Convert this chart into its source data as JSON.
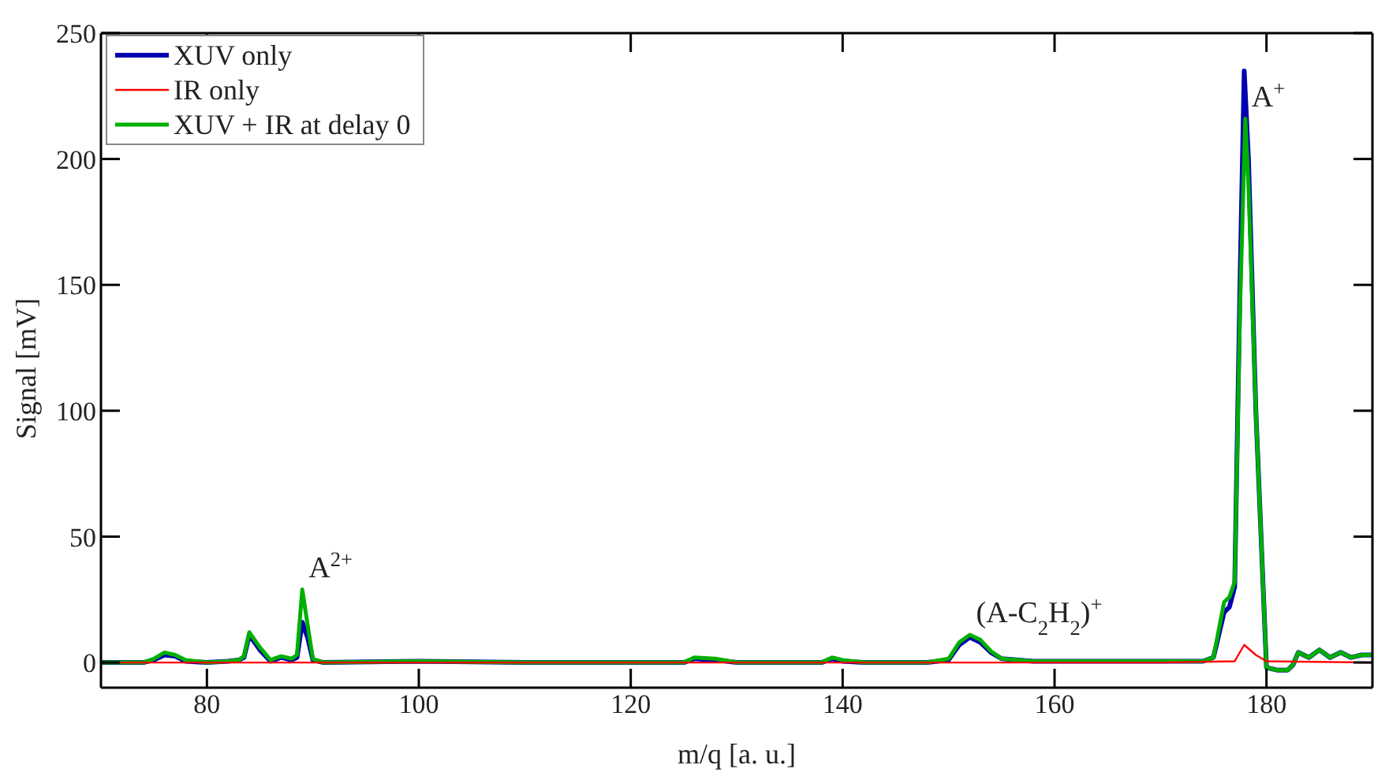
{
  "chart_data": {
    "type": "line",
    "xlabel": "m/q [a. u.]",
    "ylabel": "Signal [mV]",
    "xlim": [
      70,
      190
    ],
    "ylim": [
      -10,
      250
    ],
    "xticks": [
      80,
      100,
      120,
      140,
      160,
      180
    ],
    "yticks": [
      0,
      50,
      100,
      150,
      200,
      250
    ],
    "grid": false,
    "legend": "top left",
    "marker": "none",
    "line_style": "solid",
    "annotations": [
      {
        "text": "A$^{2+}$",
        "x": 89,
        "y": 29
      },
      {
        "text": "(A-C$_{2}$H$_{2}$)$^{+}$",
        "x": 152,
        "y": 11
      },
      {
        "text": "A$^{+}$",
        "x": 178,
        "y": 216
      }
    ],
    "series": [
      {
        "name": "XUV only",
        "color": "#0000b0",
        "x": [
          70,
          74,
          75,
          76,
          77,
          78,
          80,
          82,
          83,
          83.5,
          84,
          85,
          86,
          87,
          88,
          88.5,
          89,
          89.5,
          90,
          91,
          100,
          110,
          120,
          125,
          126,
          128,
          130,
          138,
          139,
          140,
          142,
          148,
          150,
          151,
          152,
          153,
          154,
          155,
          158,
          165,
          170,
          174,
          175,
          176,
          176.5,
          177,
          177.5,
          177.9,
          178.3,
          179,
          180,
          181,
          182,
          182.5,
          183,
          184,
          185,
          186,
          187,
          188,
          189,
          190
        ],
        "values": [
          0,
          0,
          1,
          3,
          2.5,
          0.5,
          0,
          0.5,
          1,
          2,
          11,
          5,
          0.5,
          2,
          1,
          2,
          16,
          10,
          1,
          0,
          0.5,
          0,
          0,
          0,
          1.5,
          1,
          0,
          0,
          1.5,
          0.5,
          0,
          0,
          1,
          7,
          10,
          8,
          4,
          1.5,
          0.5,
          0.5,
          0.5,
          0.5,
          2,
          20,
          22,
          30,
          150,
          235,
          200,
          100,
          -2,
          -3,
          -3,
          -1,
          4,
          2,
          5,
          2,
          4,
          2,
          3,
          3
        ]
      },
      {
        "name": "IR only",
        "color": "#ff0000",
        "x": [
          70,
          100,
          140,
          170,
          177,
          177.9,
          179,
          180,
          190
        ],
        "values": [
          0,
          0,
          0,
          0,
          0.5,
          7,
          3,
          0.5,
          0
        ]
      },
      {
        "name": "XUV + IR at delay 0",
        "color": "#00b000",
        "x": [
          70,
          74,
          75,
          76,
          77,
          78,
          80,
          82,
          83,
          83.5,
          84,
          85,
          86,
          87,
          88,
          88.5,
          89,
          89.5,
          90,
          91,
          100,
          110,
          120,
          125,
          126,
          128,
          130,
          138,
          139,
          140,
          142,
          148,
          150,
          151,
          152,
          153,
          154,
          155,
          158,
          165,
          170,
          174,
          175,
          176,
          176.5,
          177,
          177.5,
          178,
          178.3,
          179,
          180,
          181,
          182,
          182.5,
          183,
          184,
          185,
          186,
          187,
          188,
          189,
          190
        ],
        "values": [
          0,
          0,
          1.5,
          4,
          3,
          1,
          0,
          0.5,
          1,
          2.5,
          12,
          6,
          1,
          2.5,
          1.5,
          3,
          29,
          15,
          1.5,
          0,
          0.5,
          0,
          0,
          0,
          2,
          1.5,
          0,
          0,
          2,
          1,
          0,
          0,
          1.5,
          8,
          11,
          9,
          4.5,
          1.5,
          0.5,
          0.5,
          0.5,
          0.5,
          2,
          24,
          26,
          32,
          140,
          216,
          190,
          100,
          -2,
          -3,
          -3,
          -1,
          4,
          2,
          5,
          2,
          4,
          2,
          3,
          3
        ]
      }
    ]
  }
}
